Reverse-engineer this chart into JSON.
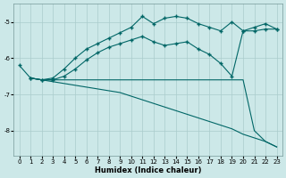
{
  "xlabel": "Humidex (Indice chaleur)",
  "bg_color": "#cce8e8",
  "line_color": "#006666",
  "grid_color": "#aacccc",
  "ylim": [
    -8.7,
    -4.5
  ],
  "xlim": [
    -0.5,
    23.5
  ],
  "yticks": [
    -8,
    -7,
    -6,
    -5
  ],
  "xticks": [
    0,
    1,
    2,
    3,
    4,
    5,
    6,
    7,
    8,
    9,
    10,
    11,
    12,
    13,
    14,
    15,
    16,
    17,
    18,
    19,
    20,
    21,
    22,
    23
  ],
  "lines": [
    {
      "x": [
        0,
        1,
        2,
        3,
        4,
        5,
        6,
        7,
        8,
        9,
        10,
        11,
        12,
        13,
        14,
        15,
        16,
        17,
        18,
        19,
        20,
        21,
        22,
        23
      ],
      "y": [
        -6.2,
        -6.55,
        -6.6,
        -6.55,
        -6.3,
        -6.0,
        -5.75,
        -5.6,
        -5.45,
        -5.3,
        -5.15,
        -4.85,
        -5.05,
        -4.9,
        -4.85,
        -4.9,
        -5.05,
        -5.15,
        -5.25,
        -5.0,
        -5.25,
        -5.15,
        -5.05,
        -5.2
      ],
      "marker": true
    },
    {
      "x": [
        1,
        2,
        3,
        4,
        5,
        6,
        7,
        8,
        9,
        10,
        11,
        12,
        13,
        14,
        15,
        16,
        17,
        18,
        19,
        20,
        21,
        22,
        23
      ],
      "y": [
        -6.55,
        -6.6,
        -6.6,
        -6.5,
        -6.3,
        -6.05,
        -5.85,
        -5.7,
        -5.6,
        -5.5,
        -5.4,
        -5.55,
        -5.65,
        -5.6,
        -5.55,
        -5.75,
        -5.9,
        -6.15,
        -6.5,
        -5.25,
        -5.25,
        -5.2,
        -5.2
      ],
      "marker": true
    },
    {
      "x": [
        1,
        2,
        3,
        4,
        5,
        6,
        7,
        8,
        9,
        10,
        11,
        12,
        13,
        14,
        15,
        16,
        17,
        18,
        19,
        20,
        21,
        22,
        23
      ],
      "y": [
        -6.55,
        -6.6,
        -6.6,
        -6.6,
        -6.6,
        -6.6,
        -6.6,
        -6.6,
        -6.6,
        -6.6,
        -6.6,
        -6.6,
        -6.6,
        -6.6,
        -6.6,
        -6.6,
        -6.6,
        -6.6,
        -6.6,
        -6.6,
        -8.0,
        -8.3,
        -8.45
      ],
      "marker": false
    },
    {
      "x": [
        1,
        2,
        3,
        4,
        5,
        6,
        7,
        8,
        9,
        10,
        11,
        12,
        13,
        14,
        15,
        16,
        17,
        18,
        19,
        20,
        21,
        22,
        23
      ],
      "y": [
        -6.55,
        -6.6,
        -6.65,
        -6.7,
        -6.75,
        -6.8,
        -6.85,
        -6.9,
        -6.95,
        -7.05,
        -7.15,
        -7.25,
        -7.35,
        -7.45,
        -7.55,
        -7.65,
        -7.75,
        -7.85,
        -7.95,
        -8.1,
        -8.2,
        -8.3,
        -8.45
      ],
      "marker": false
    }
  ]
}
